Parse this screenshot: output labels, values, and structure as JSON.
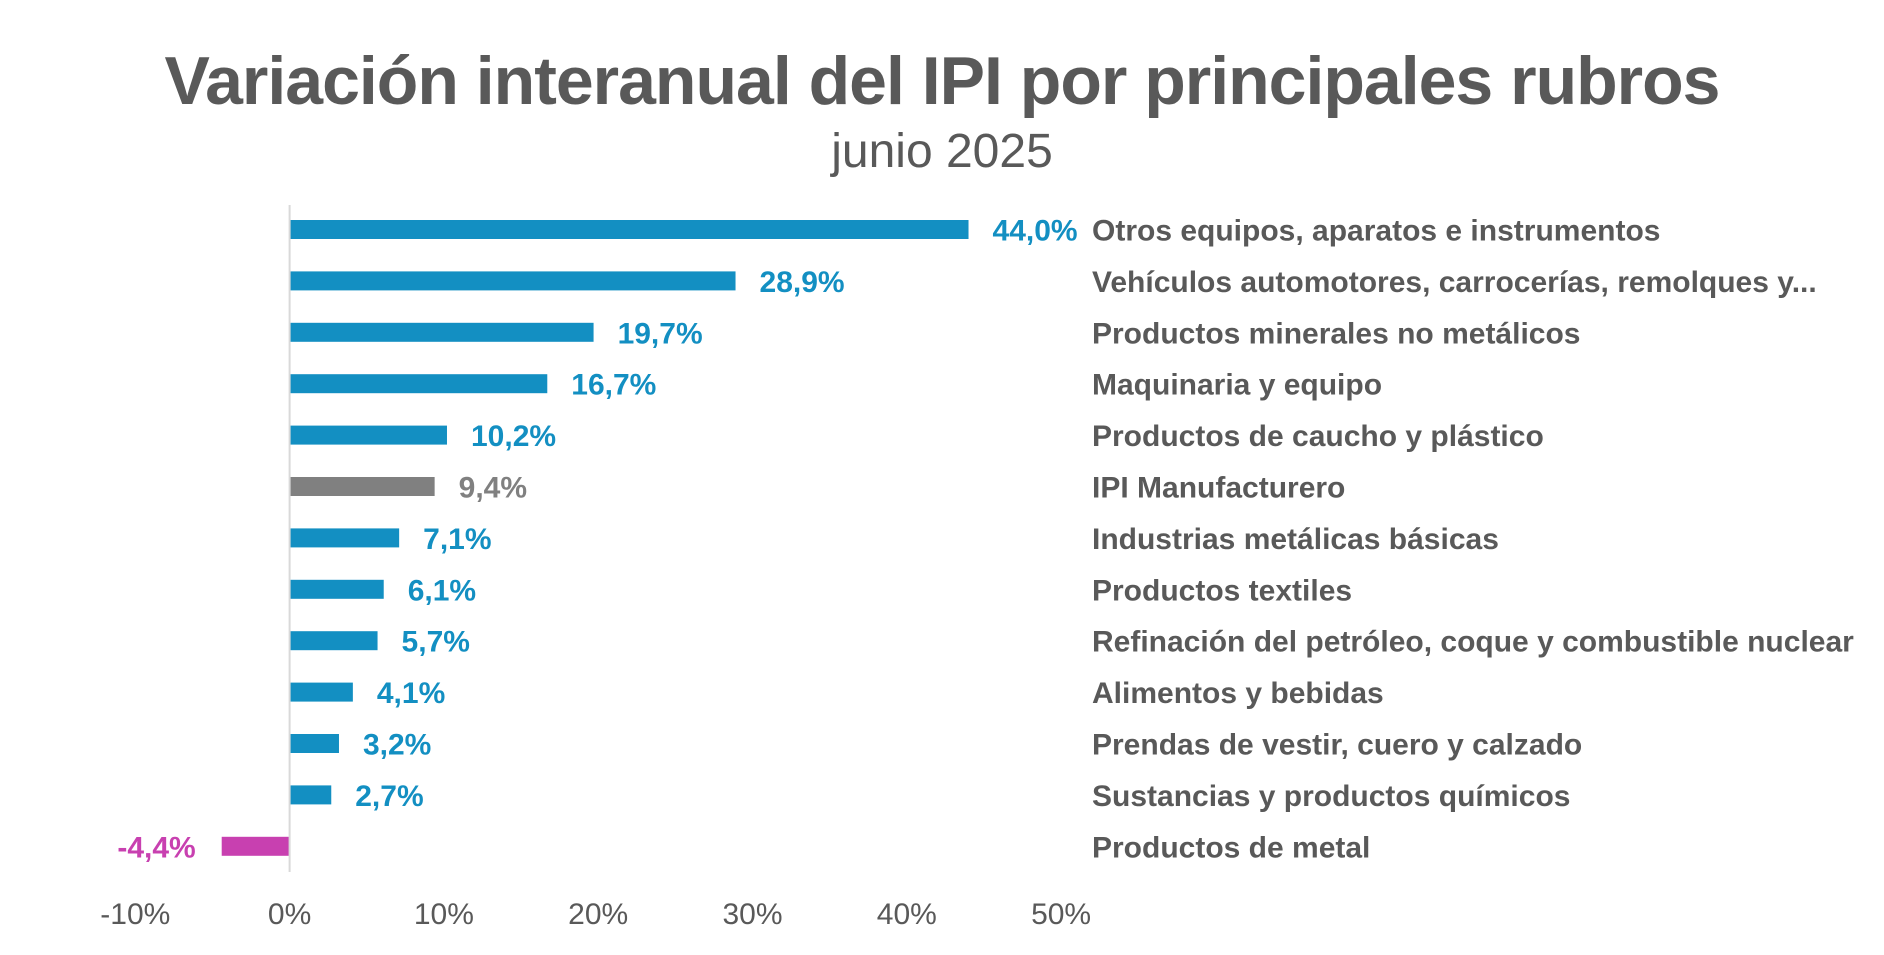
{
  "chart_data": {
    "type": "bar",
    "orientation": "horizontal",
    "title": "Variación interanual del IPI por principales rubros",
    "subtitle": "junio 2025",
    "xlabel": "",
    "ylabel": "",
    "xlim": [
      -10,
      50
    ],
    "x_ticks": [
      -10,
      0,
      10,
      20,
      30,
      40,
      50
    ],
    "x_tick_labels": [
      "-10%",
      "0%",
      "10%",
      "20%",
      "30%",
      "40%",
      "50%"
    ],
    "grid": false,
    "legend": "none",
    "categories": [
      "Otros equipos, aparatos e instrumentos",
      "Vehículos automotores, carrocerías, remolques y...",
      "Productos minerales no metálicos",
      "Maquinaria y equipo",
      "Productos de caucho y plástico",
      "IPI Manufacturero",
      "Industrias metálicas básicas",
      "Productos textiles",
      "Refinación del petróleo, coque y combustible nuclear",
      "Alimentos y bebidas",
      "Prendas de vestir, cuero y calzado",
      "Sustancias y productos químicos",
      "Productos de metal"
    ],
    "values": [
      44.0,
      28.9,
      19.7,
      16.7,
      10.2,
      9.4,
      7.1,
      6.1,
      5.7,
      4.1,
      3.2,
      2.7,
      -4.4
    ],
    "data_labels": [
      "44,0%",
      "28,9%",
      "19,7%",
      "16,7%",
      "10,2%",
      "9,4%",
      "7,1%",
      "6,1%",
      "5,7%",
      "4,1%",
      "3,2%",
      "2,7%",
      "-4,4%"
    ],
    "bar_colors": [
      "#138fc2",
      "#138fc2",
      "#138fc2",
      "#138fc2",
      "#138fc2",
      "#808080",
      "#138fc2",
      "#138fc2",
      "#138fc2",
      "#138fc2",
      "#138fc2",
      "#138fc2",
      "#c840b0"
    ],
    "colors": {
      "positive": "#138fc2",
      "total": "#808080",
      "negative": "#c840b0",
      "text": "#595959",
      "axis": "#d9d9d9"
    }
  }
}
